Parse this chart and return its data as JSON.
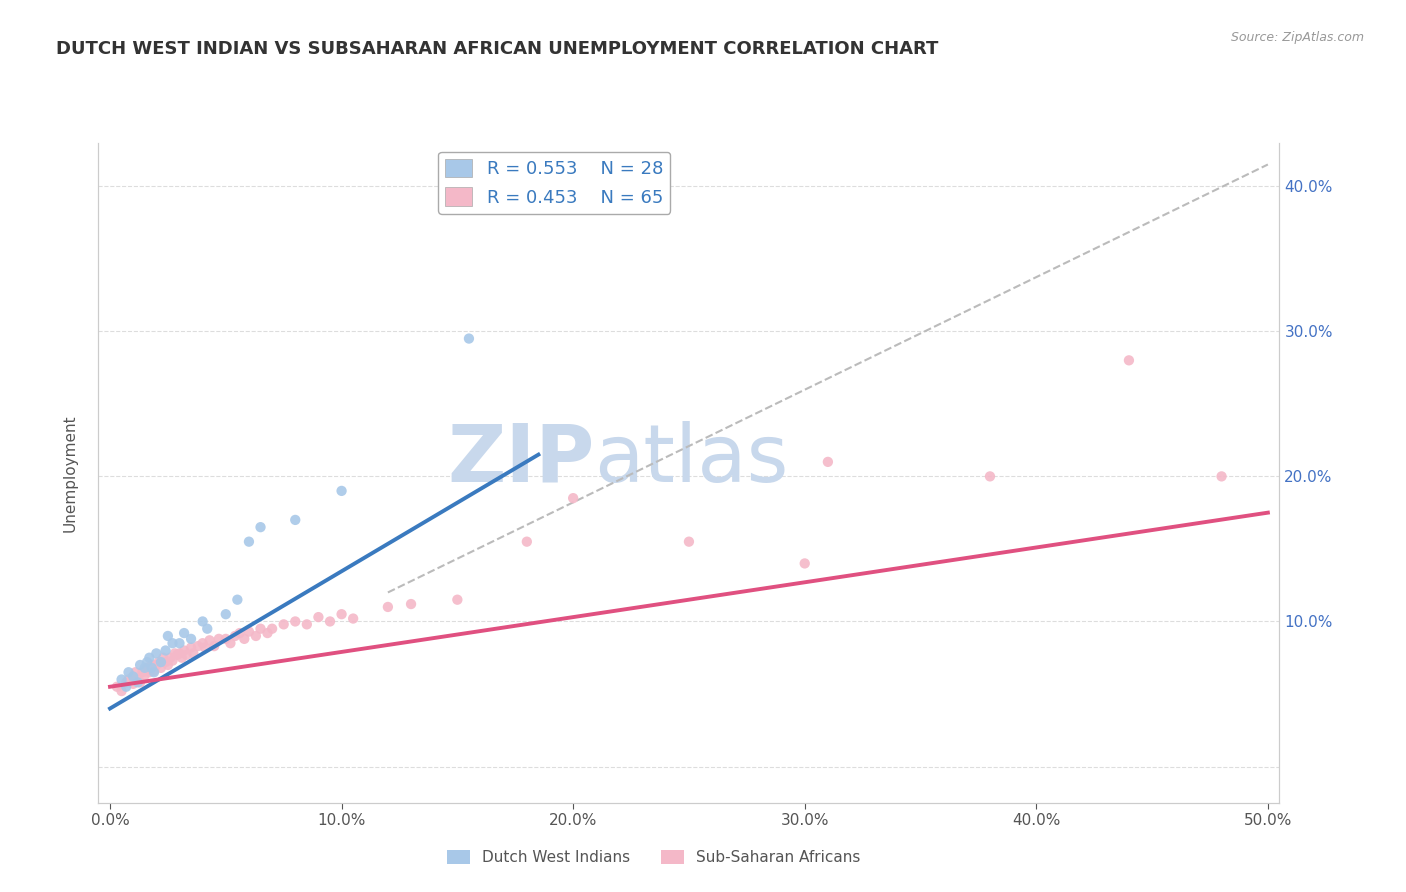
{
  "title": "DUTCH WEST INDIAN VS SUBSAHARAN AFRICAN UNEMPLOYMENT CORRELATION CHART",
  "source": "Source: ZipAtlas.com",
  "xlabel": "",
  "ylabel": "Unemployment",
  "background_color": "#ffffff",
  "plot_bg_color": "#ffffff",
  "xlim": [
    -0.005,
    0.505
  ],
  "ylim": [
    -0.025,
    0.43
  ],
  "xticks": [
    0.0,
    0.1,
    0.2,
    0.3,
    0.4,
    0.5
  ],
  "yticks_right": [
    0.0,
    0.1,
    0.2,
    0.3,
    0.4
  ],
  "ytick_labels_right": [
    "",
    "10.0%",
    "20.0%",
    "30.0%",
    "40.0%"
  ],
  "xtick_labels": [
    "0.0%",
    "10.0%",
    "20.0%",
    "30.0%",
    "40.0%",
    "50.0%"
  ],
  "grid_color": "#dddddd",
  "title_color": "#333333",
  "title_fontsize": 13,
  "watermark_zip": "ZIP",
  "watermark_atlas": "atlas",
  "watermark_color_zip": "#c8d8ec",
  "watermark_color_atlas": "#c8d8ec",
  "legend_R1": "R = 0.553",
  "legend_N1": "N = 28",
  "legend_R2": "R = 0.453",
  "legend_N2": "N = 65",
  "legend_label1": "Dutch West Indians",
  "legend_label2": "Sub-Saharan Africans",
  "blue_color": "#a8c8e8",
  "pink_color": "#f4b8c8",
  "blue_dark": "#3a7abf",
  "pink_dark": "#e05080",
  "blue_scatter": [
    [
      0.005,
      0.06
    ],
    [
      0.007,
      0.055
    ],
    [
      0.008,
      0.065
    ],
    [
      0.01,
      0.062
    ],
    [
      0.012,
      0.058
    ],
    [
      0.013,
      0.07
    ],
    [
      0.015,
      0.068
    ],
    [
      0.016,
      0.072
    ],
    [
      0.017,
      0.075
    ],
    [
      0.018,
      0.068
    ],
    [
      0.019,
      0.065
    ],
    [
      0.02,
      0.078
    ],
    [
      0.022,
      0.072
    ],
    [
      0.024,
      0.08
    ],
    [
      0.025,
      0.09
    ],
    [
      0.027,
      0.085
    ],
    [
      0.03,
      0.085
    ],
    [
      0.032,
      0.092
    ],
    [
      0.035,
      0.088
    ],
    [
      0.04,
      0.1
    ],
    [
      0.042,
      0.095
    ],
    [
      0.05,
      0.105
    ],
    [
      0.055,
      0.115
    ],
    [
      0.06,
      0.155
    ],
    [
      0.065,
      0.165
    ],
    [
      0.08,
      0.17
    ],
    [
      0.1,
      0.19
    ],
    [
      0.155,
      0.295
    ]
  ],
  "pink_scatter": [
    [
      0.003,
      0.055
    ],
    [
      0.005,
      0.052
    ],
    [
      0.007,
      0.058
    ],
    [
      0.008,
      0.06
    ],
    [
      0.01,
      0.062
    ],
    [
      0.01,
      0.057
    ],
    [
      0.011,
      0.065
    ],
    [
      0.012,
      0.06
    ],
    [
      0.013,
      0.058
    ],
    [
      0.014,
      0.065
    ],
    [
      0.015,
      0.063
    ],
    [
      0.016,
      0.068
    ],
    [
      0.017,
      0.065
    ],
    [
      0.018,
      0.07
    ],
    [
      0.019,
      0.066
    ],
    [
      0.02,
      0.07
    ],
    [
      0.021,
      0.072
    ],
    [
      0.022,
      0.068
    ],
    [
      0.023,
      0.075
    ],
    [
      0.024,
      0.072
    ],
    [
      0.025,
      0.07
    ],
    [
      0.026,
      0.075
    ],
    [
      0.027,
      0.073
    ],
    [
      0.028,
      0.078
    ],
    [
      0.029,
      0.077
    ],
    [
      0.03,
      0.078
    ],
    [
      0.031,
      0.075
    ],
    [
      0.032,
      0.08
    ],
    [
      0.033,
      0.077
    ],
    [
      0.035,
      0.082
    ],
    [
      0.036,
      0.078
    ],
    [
      0.038,
      0.083
    ],
    [
      0.04,
      0.085
    ],
    [
      0.041,
      0.082
    ],
    [
      0.043,
      0.087
    ],
    [
      0.045,
      0.083
    ],
    [
      0.047,
      0.088
    ],
    [
      0.05,
      0.088
    ],
    [
      0.052,
      0.085
    ],
    [
      0.054,
      0.09
    ],
    [
      0.056,
      0.092
    ],
    [
      0.058,
      0.088
    ],
    [
      0.06,
      0.093
    ],
    [
      0.063,
      0.09
    ],
    [
      0.065,
      0.095
    ],
    [
      0.068,
      0.092
    ],
    [
      0.07,
      0.095
    ],
    [
      0.075,
      0.098
    ],
    [
      0.08,
      0.1
    ],
    [
      0.085,
      0.098
    ],
    [
      0.09,
      0.103
    ],
    [
      0.095,
      0.1
    ],
    [
      0.1,
      0.105
    ],
    [
      0.105,
      0.102
    ],
    [
      0.12,
      0.11
    ],
    [
      0.13,
      0.112
    ],
    [
      0.15,
      0.115
    ],
    [
      0.18,
      0.155
    ],
    [
      0.2,
      0.185
    ],
    [
      0.25,
      0.155
    ],
    [
      0.3,
      0.14
    ],
    [
      0.31,
      0.21
    ],
    [
      0.38,
      0.2
    ],
    [
      0.44,
      0.28
    ],
    [
      0.48,
      0.2
    ]
  ],
  "blue_line_x": [
    0.0,
    0.185
  ],
  "blue_line_y": [
    0.04,
    0.215
  ],
  "pink_line_x": [
    0.0,
    0.5
  ],
  "pink_line_y": [
    0.055,
    0.175
  ],
  "diag_line_x": [
    0.12,
    0.5
  ],
  "diag_line_y": [
    0.12,
    0.415
  ]
}
